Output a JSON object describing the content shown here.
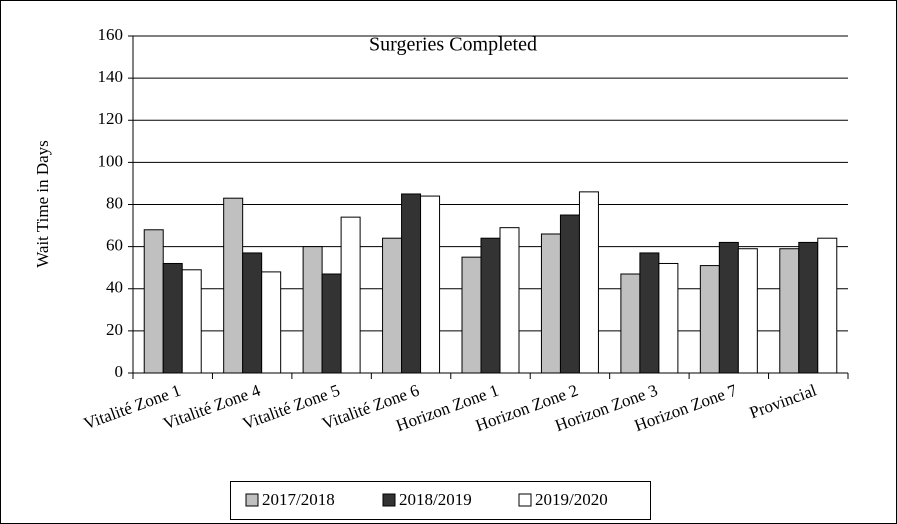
{
  "chart_data": {
    "type": "bar",
    "title": "Surgeries Completed",
    "y_label": "Wait Time in Days",
    "categories": [
      "Vitalité Zone 1",
      "Vitalité Zone 4",
      "Vitalité Zone 5",
      "Vitalité Zone 6",
      "Horizon Zone 1",
      "Horizon Zone 2",
      "Horizon Zone 3",
      "Horizon Zone 7",
      "Provincial"
    ],
    "series": [
      {
        "name": "2017/2018",
        "color": "#c0c0c0",
        "values": [
          68,
          83,
          60,
          64,
          55,
          66,
          47,
          51,
          59
        ]
      },
      {
        "name": "2018/2019",
        "color": "#333333",
        "values": [
          52,
          57,
          47,
          85,
          64,
          75,
          57,
          62,
          62
        ]
      },
      {
        "name": "2019/2020",
        "color": "#ffffff",
        "values": [
          49,
          48,
          74,
          84,
          69,
          86,
          52,
          59,
          64
        ]
      }
    ],
    "ylim": [
      0,
      160
    ],
    "yticks": [
      0,
      20,
      40,
      60,
      80,
      100,
      120,
      140,
      160
    ],
    "grid": true,
    "legend": "bottom"
  }
}
